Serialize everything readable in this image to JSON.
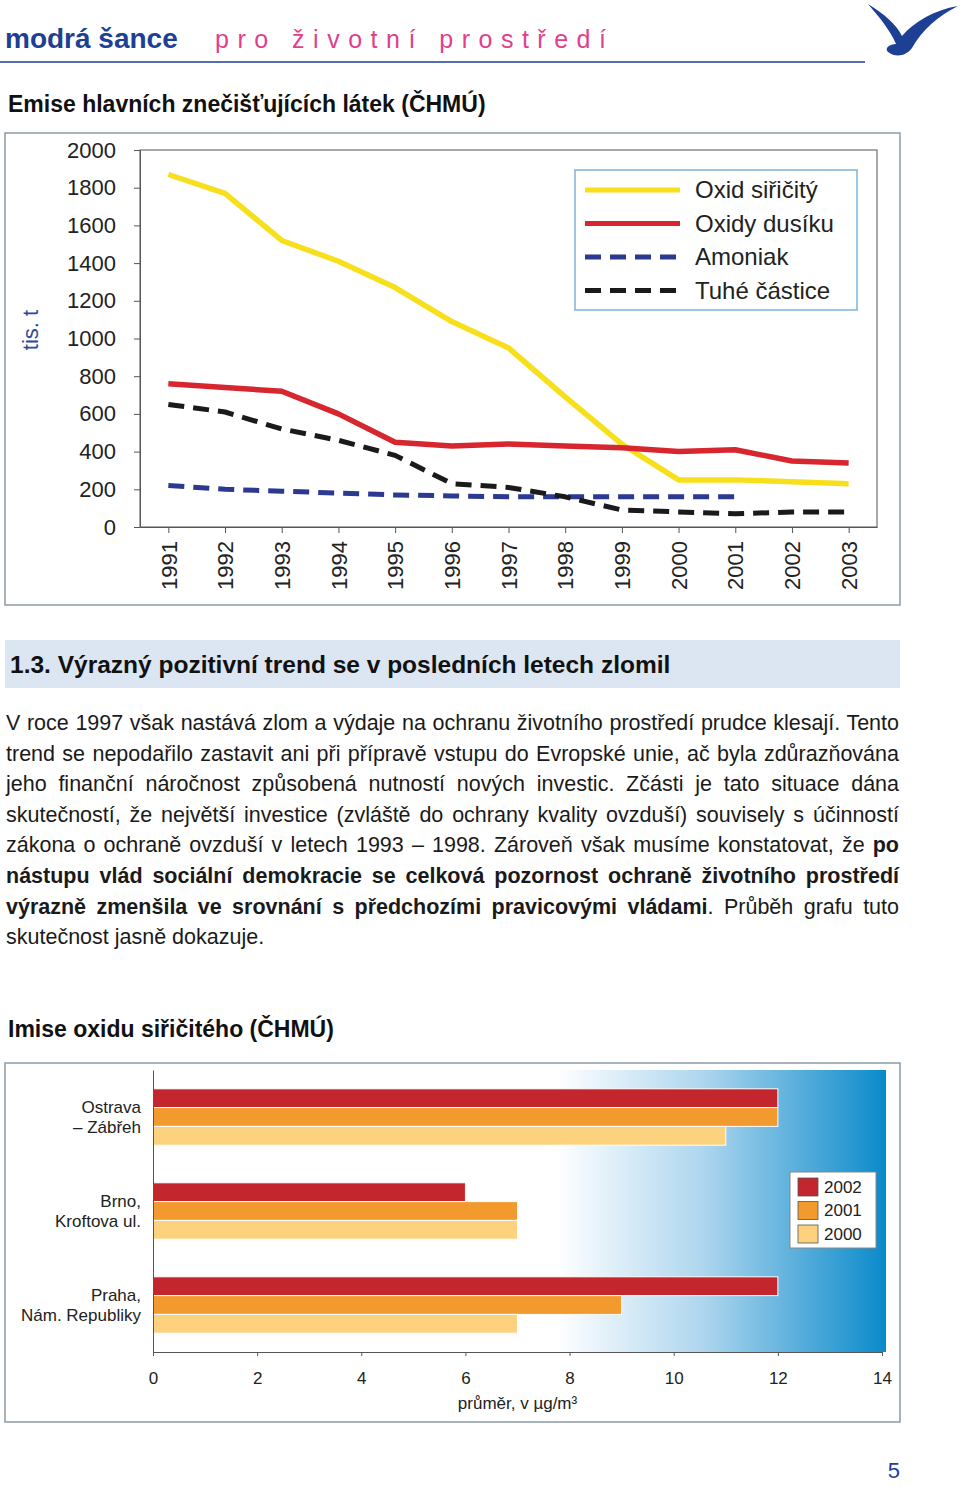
{
  "header": {
    "brand": "modrá šance",
    "tagline": "pro životní prostředí"
  },
  "chart_data": [
    {
      "type": "line",
      "title": "Emise hlavních znečišťujících látek (ČHMÚ)",
      "y_label": "tis. t",
      "categories": [
        "1991",
        "1992",
        "1993",
        "1994",
        "1995",
        "1996",
        "1997",
        "1998",
        "1999",
        "2000",
        "2001",
        "2002",
        "2003"
      ],
      "series": [
        {
          "name": "Oxid siřičitý",
          "color": "#f7e01b",
          "line_style": "solid",
          "values": [
            1870,
            1770,
            1520,
            1410,
            1270,
            1090,
            950,
            690,
            440,
            250,
            250,
            240,
            230
          ]
        },
        {
          "name": "Oxidy dusíku",
          "color": "#d7262e",
          "line_style": "solid",
          "values": [
            760,
            740,
            720,
            600,
            450,
            430,
            440,
            430,
            420,
            400,
            410,
            350,
            340
          ]
        },
        {
          "name": "Amoniak",
          "color": "#2b3990",
          "line_style": "dashed",
          "values": [
            220,
            200,
            190,
            180,
            170,
            165,
            160,
            160,
            160,
            160,
            160,
            null,
            null
          ]
        },
        {
          "name": "Tuhé částice",
          "color": "#1a1a1a",
          "line_style": "dashed",
          "values": [
            650,
            610,
            520,
            460,
            380,
            230,
            210,
            160,
            90,
            80,
            70,
            80,
            80
          ]
        }
      ],
      "ylim": [
        0,
        2000
      ],
      "yticks": [
        0,
        200,
        400,
        600,
        800,
        1000,
        1200,
        1400,
        1600,
        1800,
        2000
      ],
      "grid": false,
      "legend": "top-right"
    },
    {
      "type": "bar",
      "orientation": "horizontal",
      "title": "Imise oxidu siřičitého (ČHMÚ)",
      "x_label": "průměr, v µg/m³",
      "categories": [
        "Ostrava\n– Zábřeh",
        "Brno,\nKroftova ul.",
        "Praha,\nNám. Republiky"
      ],
      "series": [
        {
          "name": "2002",
          "color": "#c4262e",
          "values": [
            12,
            6,
            12
          ]
        },
        {
          "name": "2001",
          "color": "#f29a2e",
          "values": [
            12,
            7,
            9
          ]
        },
        {
          "name": "2000",
          "color": "#fcd27e",
          "values": [
            11,
            7,
            7
          ]
        }
      ],
      "xlim": [
        0,
        14
      ],
      "xticks": [
        0,
        2,
        4,
        6,
        8,
        10,
        12,
        14
      ],
      "grid": false,
      "legend": "right"
    }
  ],
  "section": {
    "heading": "1.3. Výrazný pozitivní trend se v posledních letech zlomil",
    "paragraph": {
      "text_before": "V roce 1997 však nastává zlom a výdaje na ochranu životního prostředí prudce klesají. Tento trend se nepodařilo zastavit ani při přípravě vstupu do Evropské unie, ač byla zdůrazňována jeho finanční náročnost způsobená nutností nových investic. Zčásti je tato situace dána skutečností, že největší investice (zvláště do ochrany kvality ovzduší) souvisely s účinností zákona o ochraně ovzduší v letech 1993 – 1998. Zároveň však musíme konstatovat, že ",
      "emphasis": "po nástupu vlád sociální demokracie se celková pozornost ochraně životního prostředí výrazně zmenšila ve srovnání s předchozími pravicovými vládami",
      "text_after": ". Průběh grafu tuto skutečnost jasně dokazuje."
    }
  },
  "page_number": 5
}
